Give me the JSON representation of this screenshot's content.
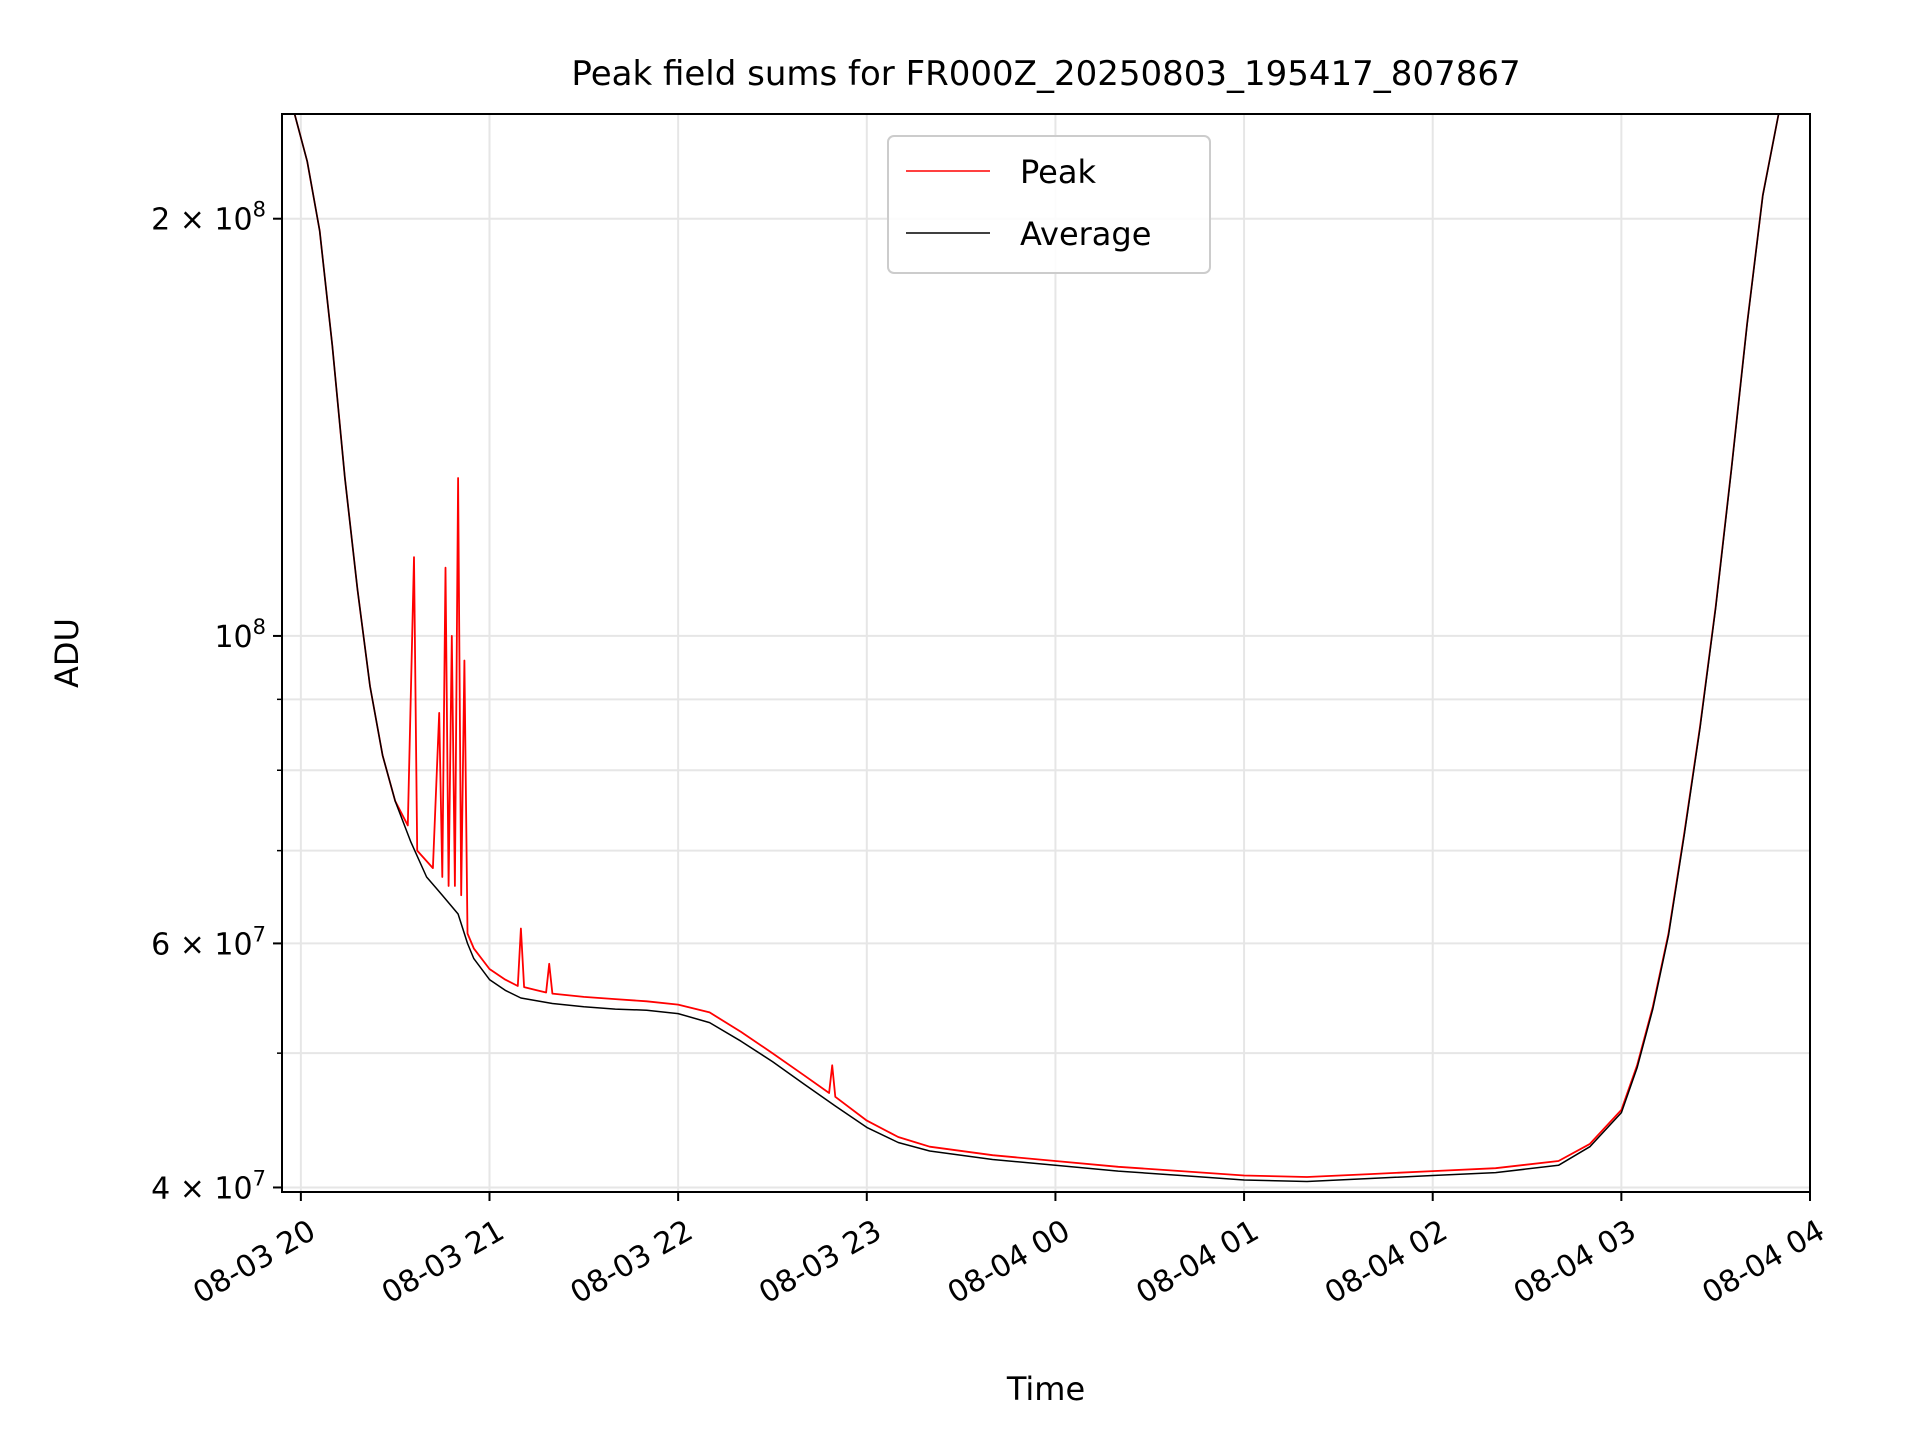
{
  "chart_data": {
    "type": "line",
    "title": "Peak field sums for FR000Z_20250803_195417_807867",
    "xlabel": "Time",
    "ylabel": "ADU",
    "yscale": "log",
    "grid": true,
    "legend_placement": "top-center",
    "xlim": [
      "2025-08-03 19:54",
      "2025-08-04 04:00"
    ],
    "ylim": [
      39700000,
      238000000
    ],
    "x_ticks": [
      {
        "value": "2025-08-03 20:00",
        "label": "08-03 20"
      },
      {
        "value": "2025-08-03 21:00",
        "label": "08-03 21"
      },
      {
        "value": "2025-08-03 22:00",
        "label": "08-03 22"
      },
      {
        "value": "2025-08-03 23:00",
        "label": "08-03 23"
      },
      {
        "value": "2025-08-04 00:00",
        "label": "08-04 00"
      },
      {
        "value": "2025-08-04 01:00",
        "label": "08-04 01"
      },
      {
        "value": "2025-08-04 02:00",
        "label": "08-04 02"
      },
      {
        "value": "2025-08-04 03:00",
        "label": "08-04 03"
      },
      {
        "value": "2025-08-04 04:00",
        "label": "08-04 04"
      }
    ],
    "y_ticks": [
      {
        "value": 40000000,
        "mantissa": "4",
        "exponent": "7"
      },
      {
        "value": 60000000,
        "mantissa": "6",
        "exponent": "7"
      },
      {
        "value": 100000000,
        "mantissa": "",
        "exponent": "8"
      },
      {
        "value": 200000000,
        "mantissa": "2",
        "exponent": "8"
      }
    ],
    "y_minor_ticks": [
      50000000,
      70000000,
      80000000,
      90000000,
      300000000
    ],
    "series": [
      {
        "name": "Peak",
        "color": "#ff0000",
        "points": [
          [
            "2025-08-03 19:54",
            238000000
          ],
          [
            "2025-08-03 19:58",
            238000000
          ],
          [
            "2025-08-03 20:02",
            220000000
          ],
          [
            "2025-08-03 20:06",
            196000000
          ],
          [
            "2025-08-03 20:10",
            162000000
          ],
          [
            "2025-08-03 20:14",
            130000000
          ],
          [
            "2025-08-03 20:18",
            108000000
          ],
          [
            "2025-08-03 20:22",
            92000000
          ],
          [
            "2025-08-03 20:26",
            82000000
          ],
          [
            "2025-08-03 20:30",
            76000000
          ],
          [
            "2025-08-03 20:34",
            73000000
          ],
          [
            "2025-08-03 20:36",
            114000000
          ],
          [
            "2025-08-03 20:37",
            70000000
          ],
          [
            "2025-08-03 20:42",
            68000000
          ],
          [
            "2025-08-03 20:44",
            88000000
          ],
          [
            "2025-08-03 20:45",
            67000000
          ],
          [
            "2025-08-03 20:46",
            112000000
          ],
          [
            "2025-08-03 20:47",
            66000000
          ],
          [
            "2025-08-03 20:48",
            100000000
          ],
          [
            "2025-08-03 20:49",
            66000000
          ],
          [
            "2025-08-03 20:50",
            130000000
          ],
          [
            "2025-08-03 20:51",
            65000000
          ],
          [
            "2025-08-03 20:52",
            96000000
          ],
          [
            "2025-08-03 20:53",
            61000000
          ],
          [
            "2025-08-03 20:55",
            59500000
          ],
          [
            "2025-08-03 21:00",
            57500000
          ],
          [
            "2025-08-03 21:05",
            56500000
          ],
          [
            "2025-08-03 21:09",
            55900000
          ],
          [
            "2025-08-03 21:10",
            61500000
          ],
          [
            "2025-08-03 21:11",
            55800000
          ],
          [
            "2025-08-03 21:15",
            55500000
          ],
          [
            "2025-08-03 21:18",
            55300000
          ],
          [
            "2025-08-03 21:19",
            58000000
          ],
          [
            "2025-08-03 21:20",
            55200000
          ],
          [
            "2025-08-03 21:30",
            54900000
          ],
          [
            "2025-08-03 21:40",
            54700000
          ],
          [
            "2025-08-03 21:50",
            54500000
          ],
          [
            "2025-08-03 22:00",
            54200000
          ],
          [
            "2025-08-03 22:10",
            53500000
          ],
          [
            "2025-08-03 22:20",
            51800000
          ],
          [
            "2025-08-03 22:30",
            50000000
          ],
          [
            "2025-08-03 22:40",
            48200000
          ],
          [
            "2025-08-03 22:48",
            46800000
          ],
          [
            "2025-08-03 22:49",
            49000000
          ],
          [
            "2025-08-03 22:50",
            46500000
          ],
          [
            "2025-08-03 23:00",
            44700000
          ],
          [
            "2025-08-03 23:10",
            43500000
          ],
          [
            "2025-08-03 23:20",
            42800000
          ],
          [
            "2025-08-03 23:40",
            42200000
          ],
          [
            "2025-08-04 00:00",
            41800000
          ],
          [
            "2025-08-04 00:20",
            41400000
          ],
          [
            "2025-08-04 00:40",
            41100000
          ],
          [
            "2025-08-04 01:00",
            40800000
          ],
          [
            "2025-08-04 01:20",
            40700000
          ],
          [
            "2025-08-04 01:40",
            40900000
          ],
          [
            "2025-08-04 02:00",
            41100000
          ],
          [
            "2025-08-04 02:20",
            41300000
          ],
          [
            "2025-08-04 02:40",
            41800000
          ],
          [
            "2025-08-04 02:50",
            43000000
          ],
          [
            "2025-08-04 03:00",
            45500000
          ],
          [
            "2025-08-04 03:05",
            49000000
          ],
          [
            "2025-08-04 03:10",
            54000000
          ],
          [
            "2025-08-04 03:15",
            61000000
          ],
          [
            "2025-08-04 03:20",
            72000000
          ],
          [
            "2025-08-04 03:25",
            86000000
          ],
          [
            "2025-08-04 03:30",
            105000000
          ],
          [
            "2025-08-04 03:35",
            132000000
          ],
          [
            "2025-08-04 03:40",
            168000000
          ],
          [
            "2025-08-04 03:45",
            208000000
          ],
          [
            "2025-08-04 03:50",
            238000000
          ],
          [
            "2025-08-04 04:00",
            238000000
          ]
        ]
      },
      {
        "name": "Average",
        "color": "#000000",
        "points": [
          [
            "2025-08-03 19:54",
            238000000
          ],
          [
            "2025-08-03 19:58",
            238000000
          ],
          [
            "2025-08-03 20:02",
            220000000
          ],
          [
            "2025-08-03 20:06",
            196000000
          ],
          [
            "2025-08-03 20:10",
            162000000
          ],
          [
            "2025-08-03 20:14",
            130000000
          ],
          [
            "2025-08-03 20:18",
            108000000
          ],
          [
            "2025-08-03 20:22",
            92000000
          ],
          [
            "2025-08-03 20:26",
            82000000
          ],
          [
            "2025-08-03 20:30",
            76000000
          ],
          [
            "2025-08-03 20:35",
            71000000
          ],
          [
            "2025-08-03 20:40",
            67000000
          ],
          [
            "2025-08-03 20:45",
            65000000
          ],
          [
            "2025-08-03 20:50",
            63000000
          ],
          [
            "2025-08-03 20:53",
            60000000
          ],
          [
            "2025-08-03 20:55",
            58500000
          ],
          [
            "2025-08-03 21:00",
            56500000
          ],
          [
            "2025-08-03 21:05",
            55500000
          ],
          [
            "2025-08-03 21:10",
            54800000
          ],
          [
            "2025-08-03 21:20",
            54300000
          ],
          [
            "2025-08-03 21:30",
            54000000
          ],
          [
            "2025-08-03 21:40",
            53800000
          ],
          [
            "2025-08-03 21:50",
            53700000
          ],
          [
            "2025-08-03 22:00",
            53400000
          ],
          [
            "2025-08-03 22:10",
            52600000
          ],
          [
            "2025-08-03 22:20",
            51000000
          ],
          [
            "2025-08-03 22:30",
            49300000
          ],
          [
            "2025-08-03 22:40",
            47500000
          ],
          [
            "2025-08-03 22:50",
            45800000
          ],
          [
            "2025-08-03 23:00",
            44200000
          ],
          [
            "2025-08-03 23:10",
            43100000
          ],
          [
            "2025-08-03 23:20",
            42500000
          ],
          [
            "2025-08-03 23:40",
            41900000
          ],
          [
            "2025-08-04 00:00",
            41500000
          ],
          [
            "2025-08-04 00:20",
            41100000
          ],
          [
            "2025-08-04 00:40",
            40800000
          ],
          [
            "2025-08-04 01:00",
            40500000
          ],
          [
            "2025-08-04 01:20",
            40400000
          ],
          [
            "2025-08-04 01:40",
            40600000
          ],
          [
            "2025-08-04 02:00",
            40800000
          ],
          [
            "2025-08-04 02:20",
            41000000
          ],
          [
            "2025-08-04 02:40",
            41500000
          ],
          [
            "2025-08-04 02:50",
            42800000
          ],
          [
            "2025-08-04 03:00",
            45300000
          ],
          [
            "2025-08-04 03:05",
            48800000
          ],
          [
            "2025-08-04 03:10",
            53800000
          ],
          [
            "2025-08-04 03:15",
            60800000
          ],
          [
            "2025-08-04 03:20",
            71800000
          ],
          [
            "2025-08-04 03:25",
            85800000
          ],
          [
            "2025-08-04 03:30",
            104800000
          ],
          [
            "2025-08-04 03:35",
            131800000
          ],
          [
            "2025-08-04 03:40",
            167800000
          ],
          [
            "2025-08-04 03:45",
            207800000
          ],
          [
            "2025-08-04 03:50",
            238000000
          ],
          [
            "2025-08-04 04:00",
            238000000
          ]
        ]
      }
    ]
  }
}
